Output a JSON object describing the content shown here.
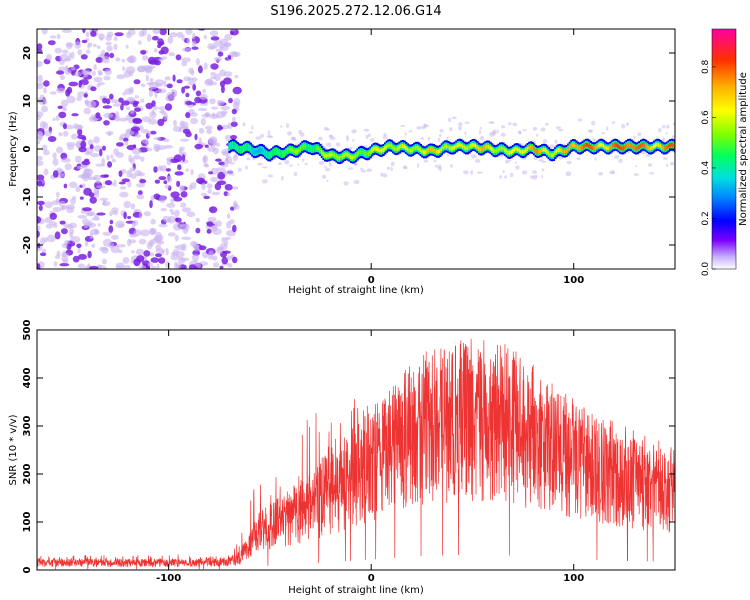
{
  "title": "S196.2025.272.12.06.G14",
  "colors": {
    "scatter_light": "#c9b2f0",
    "scatter_dark": "#7a20e0",
    "snr_line": "#ee3333",
    "snr_line_dark": "#c81818"
  },
  "chart_data": [
    {
      "type": "heatmap",
      "xlabel": "Height of straight line (km)",
      "ylabel": "Frequency (Hz)",
      "xlim": [
        -165,
        150
      ],
      "ylim": [
        -25,
        25
      ],
      "x_ticks": [
        -100,
        0,
        100
      ],
      "y_ticks": [
        -20,
        -10,
        0,
        10,
        20
      ],
      "colorbar": {
        "label": "Normalized spectral amplitude",
        "range": [
          0,
          0.95
        ],
        "ticks": [
          0.0,
          0.2,
          0.4,
          0.6,
          0.8
        ]
      },
      "noise_region_x": [
        -165,
        -70
      ],
      "signal_trace": {
        "x": [
          -70,
          -60,
          -50,
          -40,
          -30,
          -20,
          -10,
          0,
          10,
          20,
          30,
          40,
          50,
          60,
          70,
          80,
          90,
          100,
          110,
          120,
          130,
          140,
          150
        ],
        "frequency": [
          0.5,
          0,
          -1,
          -0.5,
          0.5,
          -1.5,
          -1.5,
          -0.5,
          0.5,
          0,
          -0.5,
          0.5,
          0.5,
          0,
          -0.5,
          0,
          -1,
          0.5,
          0.5,
          0.5,
          0.5,
          0.5,
          0.5
        ],
        "amplitude": [
          0.45,
          0.4,
          0.45,
          0.55,
          0.6,
          0.6,
          0.65,
          0.65,
          0.65,
          0.7,
          0.7,
          0.7,
          0.7,
          0.7,
          0.7,
          0.75,
          0.75,
          0.8,
          0.85,
          0.85,
          0.85,
          0.85,
          0.8
        ]
      }
    },
    {
      "type": "line",
      "xlabel": "Height of straight line (km)",
      "ylabel": "SNR (10 * v/v)",
      "xlim": [
        -165,
        150
      ],
      "ylim": [
        0,
        500
      ],
      "x_ticks": [
        -100,
        0,
        100
      ],
      "y_ticks": [
        0,
        100,
        200,
        300,
        400,
        500
      ],
      "envelope": {
        "x": [
          -165,
          -140,
          -120,
          -100,
          -80,
          -70,
          -65,
          -60,
          -55,
          -50,
          -40,
          -30,
          -20,
          -10,
          0,
          10,
          20,
          30,
          40,
          50,
          60,
          70,
          80,
          90,
          100,
          110,
          120,
          130,
          140,
          150
        ],
        "mean": [
          15,
          15,
          15,
          15,
          15,
          18,
          25,
          50,
          80,
          90,
          110,
          130,
          160,
          190,
          220,
          250,
          280,
          300,
          310,
          315,
          310,
          300,
          280,
          250,
          230,
          210,
          200,
          190,
          175,
          170
        ],
        "peak": [
          30,
          32,
          30,
          35,
          30,
          35,
          60,
          150,
          230,
          180,
          250,
          340,
          330,
          360,
          340,
          390,
          420,
          440,
          470,
          450,
          460,
          440,
          420,
          390,
          340,
          320,
          280,
          280,
          250,
          240
        ]
      }
    }
  ]
}
